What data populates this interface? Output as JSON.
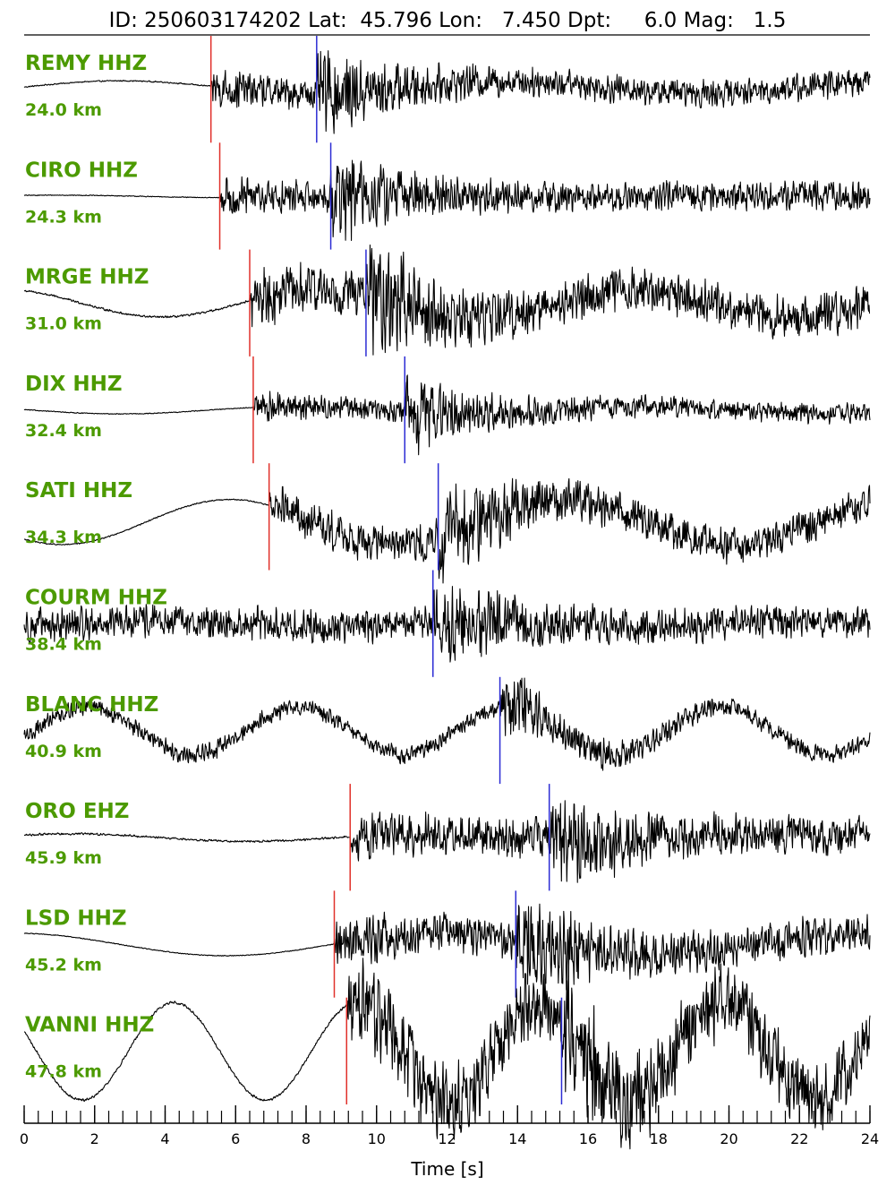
{
  "colors": {
    "label": "#4c9a00",
    "p_pick": "#e0302a",
    "s_pick": "#2c2cd4",
    "trace": "#000000"
  },
  "chart_data": {
    "type": "line",
    "title": "ID: 250603174202 Lat:  45.796 Lon:   7.450 Dpt:     6.0 Mag:   1.5",
    "xlabel": "Time [s]",
    "xlim": [
      0,
      24
    ],
    "x_ticks": [
      0,
      2,
      4,
      6,
      8,
      10,
      12,
      14,
      16,
      18,
      20,
      22,
      24
    ],
    "x_minor_step": 0.4,
    "x_tick_labels": [
      "0",
      "2",
      "4",
      "6",
      "8",
      "10",
      "12",
      "14",
      "16",
      "18",
      "20",
      "22",
      "24"
    ],
    "traces": [
      {
        "station": "REMY HHZ",
        "distance": "24.0 km",
        "p_pick": 5.3,
        "s_pick": 8.3,
        "baseline": 0.1,
        "noise": 0.03,
        "slow_amp": 0.25,
        "slow_period": 11,
        "p_amp": 0.9,
        "s_amp": 1.55,
        "coda": 0.12
      },
      {
        "station": "CIRO HHZ",
        "distance": "24.3 km",
        "p_pick": 5.55,
        "s_pick": 8.7,
        "baseline": 0.0,
        "noise": 0.02,
        "slow_amp": 0.05,
        "slow_period": 10,
        "p_amp": 0.85,
        "s_amp": 1.6,
        "coda": 0.18
      },
      {
        "station": "MRGE HHZ",
        "distance": "31.0 km",
        "p_pick": 6.4,
        "s_pick": 9.7,
        "baseline": 0.0,
        "noise": 0.05,
        "slow_amp": 0.55,
        "slow_period": 9,
        "p_amp": 1.1,
        "s_amp": 2.0,
        "coda": 0.3
      },
      {
        "station": "DIX HHZ",
        "distance": "32.4 km",
        "p_pick": 6.5,
        "s_pick": 10.8,
        "baseline": 0.0,
        "noise": 0.02,
        "slow_amp": 0.15,
        "slow_period": 10,
        "p_amp": 0.6,
        "s_amp": 1.7,
        "coda": 0.1
      },
      {
        "station": "SATI HHZ",
        "distance": "34.3 km",
        "p_pick": 6.95,
        "s_pick": 11.75,
        "baseline": -0.2,
        "noise": 0.03,
        "slow_amp": 0.9,
        "slow_period": 9.5,
        "p_amp": 0.6,
        "s_amp": 1.7,
        "coda": 0.45
      },
      {
        "station": "COURM HHZ",
        "distance": "38.4 km",
        "p_pick": 0.0,
        "s_pick": 11.6,
        "baseline": 0.0,
        "noise": 0.55,
        "slow_amp": 0.1,
        "slow_period": 9,
        "p_amp": 0.55,
        "s_amp": 1.6,
        "coda": 0.55
      },
      {
        "station": "BLANC HHZ",
        "distance": "40.9 km",
        "p_pick": 0.0,
        "s_pick": 13.5,
        "baseline": 0.0,
        "noise": 0.2,
        "slow_amp": 0.95,
        "slow_period": 6,
        "p_amp": 0.4,
        "s_amp": 1.5,
        "coda": 0.5
      },
      {
        "station": "ORO EHZ",
        "distance": "45.9 km",
        "p_pick": 9.25,
        "s_pick": 14.9,
        "baseline": 0.0,
        "noise": 0.05,
        "slow_amp": 0.15,
        "slow_period": 10,
        "p_amp": 0.55,
        "s_amp": 1.6,
        "coda": 0.55
      },
      {
        "station": "LSD HHZ",
        "distance": "45.2 km",
        "p_pick": 8.8,
        "s_pick": 13.95,
        "baseline": 0.0,
        "noise": 0.02,
        "slow_amp": 0.45,
        "slow_period": 12,
        "p_amp": 0.9,
        "s_amp": 1.8,
        "coda": 0.35
      },
      {
        "station": "VANNI HHZ",
        "distance": "47.8 km",
        "p_pick": 9.15,
        "s_pick": 15.25,
        "baseline": 0.0,
        "noise": 0.06,
        "slow_amp": 1.95,
        "slow_period": 5.2,
        "p_amp": 1.5,
        "s_amp": 1.8,
        "coda": 0.75
      }
    ]
  }
}
